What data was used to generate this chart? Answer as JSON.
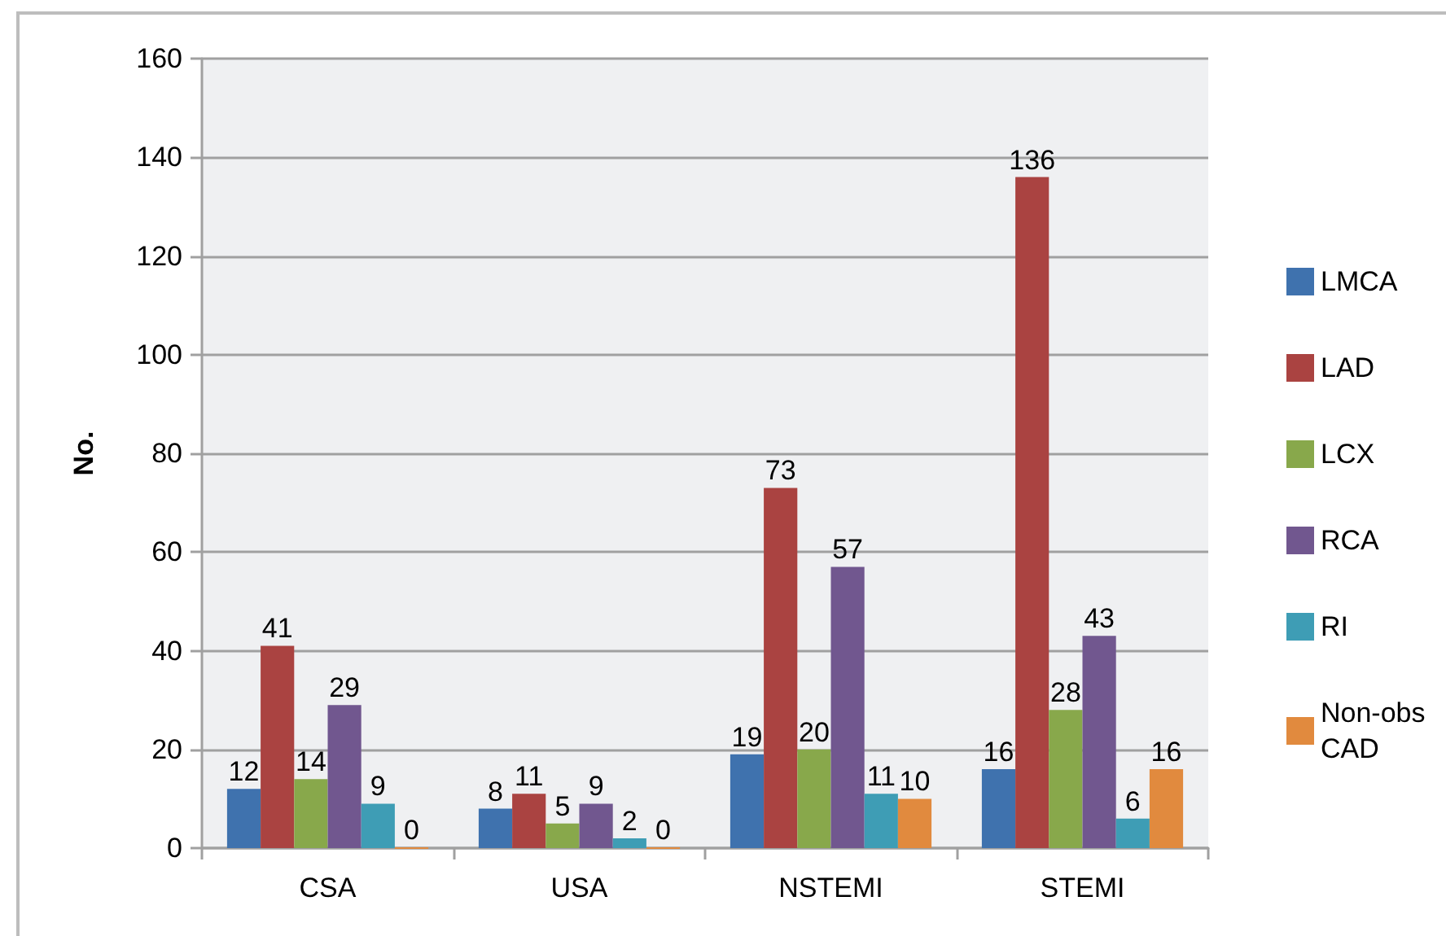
{
  "chart_data": {
    "type": "bar",
    "ylabel": "No.",
    "categories": [
      "CSA",
      "USA",
      "NSTEMI",
      "STEMI"
    ],
    "series": [
      {
        "name": "LMCA",
        "color": "#3f72ae",
        "values": [
          12,
          8,
          19,
          16
        ]
      },
      {
        "name": "LAD",
        "color": "#aa4341",
        "values": [
          41,
          11,
          73,
          136
        ]
      },
      {
        "name": "LCX",
        "color": "#88a84b",
        "values": [
          14,
          5,
          20,
          28
        ]
      },
      {
        "name": "RCA",
        "color": "#71578f",
        "values": [
          29,
          9,
          57,
          43
        ]
      },
      {
        "name": "RI",
        "color": "#3e9db5",
        "values": [
          9,
          2,
          11,
          6
        ]
      },
      {
        "name": "Non-obs CAD",
        "color": "#e18a3e",
        "values": [
          0,
          0,
          10,
          16
        ]
      }
    ],
    "ylim": [
      0,
      160
    ],
    "yticks": [
      0,
      20,
      40,
      60,
      80,
      100,
      120,
      140,
      160
    ],
    "grid": "y",
    "legend": "right",
    "data_labels": true
  }
}
